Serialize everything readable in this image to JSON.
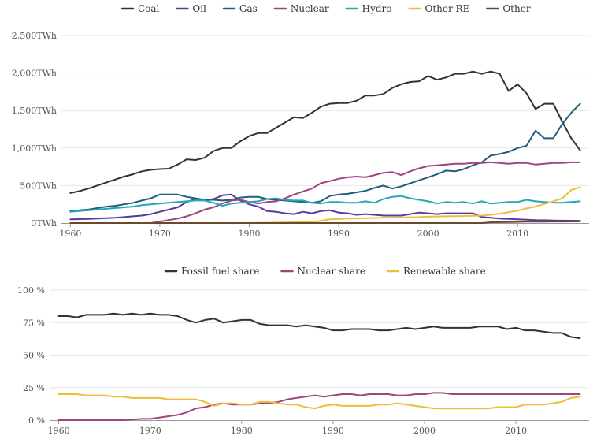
{
  "chart_data": [
    {
      "type": "line",
      "title": "",
      "xlabel": "",
      "ylabel": "",
      "x": [
        1960,
        1961,
        1962,
        1963,
        1964,
        1965,
        1966,
        1967,
        1968,
        1969,
        1970,
        1971,
        1972,
        1973,
        1974,
        1975,
        1976,
        1977,
        1978,
        1979,
        1980,
        1981,
        1982,
        1983,
        1984,
        1985,
        1986,
        1987,
        1988,
        1989,
        1990,
        1991,
        1992,
        1993,
        1994,
        1995,
        1996,
        1997,
        1998,
        1999,
        2000,
        2001,
        2002,
        2003,
        2004,
        2005,
        2006,
        2007,
        2008,
        2009,
        2010,
        2011,
        2012,
        2013,
        2014,
        2015,
        2016,
        2017
      ],
      "xlim": [
        1959,
        2018
      ],
      "xticks": [
        1960,
        1970,
        1980,
        1990,
        2000,
        2010
      ],
      "ylim": [
        0,
        2500
      ],
      "yticks": [
        0,
        500,
        1000,
        1500,
        2000,
        2500
      ],
      "ytick_labels": [
        "0TWh",
        "500TWh",
        "1,000TWh",
        "1,500TWh",
        "2,000TWh",
        "2,500TWh"
      ],
      "grid": true,
      "legend_position": "top",
      "series": [
        {
          "name": "Coal",
          "color": "#333333",
          "values": [
            400,
            425,
            460,
            500,
            540,
            580,
            620,
            650,
            690,
            710,
            720,
            725,
            780,
            850,
            840,
            870,
            960,
            1000,
            1000,
            1090,
            1160,
            1200,
            1200,
            1270,
            1340,
            1410,
            1400,
            1470,
            1550,
            1590,
            1600,
            1600,
            1630,
            1700,
            1700,
            1720,
            1800,
            1850,
            1880,
            1890,
            1960,
            1910,
            1940,
            1990,
            1990,
            2020,
            1990,
            2020,
            1990,
            1760,
            1850,
            1730,
            1520,
            1590,
            1590,
            1350,
            1130,
            970
          ]
        },
        {
          "name": "Oil",
          "color": "#5b3a9e",
          "values": [
            50,
            52,
            55,
            60,
            65,
            70,
            80,
            90,
            100,
            120,
            150,
            180,
            210,
            280,
            320,
            300,
            320,
            370,
            380,
            300,
            250,
            220,
            160,
            150,
            130,
            120,
            150,
            130,
            160,
            170,
            140,
            130,
            110,
            120,
            110,
            100,
            100,
            100,
            120,
            140,
            130,
            120,
            130,
            130,
            130,
            130,
            80,
            70,
            60,
            55,
            50,
            45,
            40,
            38,
            35,
            33,
            32,
            30
          ]
        },
        {
          "name": "Gas",
          "color": "#1f5f7a",
          "values": [
            160,
            170,
            180,
            200,
            220,
            230,
            250,
            270,
            300,
            330,
            380,
            380,
            380,
            350,
            330,
            310,
            310,
            300,
            310,
            340,
            350,
            350,
            320,
            310,
            300,
            290,
            280,
            270,
            290,
            360,
            380,
            390,
            410,
            430,
            470,
            500,
            460,
            490,
            530,
            570,
            610,
            650,
            700,
            690,
            720,
            770,
            810,
            900,
            920,
            950,
            1000,
            1030,
            1230,
            1130,
            1130,
            1320,
            1470,
            1590
          ]
        },
        {
          "name": "Nuclear",
          "color": "#a0437e",
          "values": [
            0,
            0,
            0,
            0,
            0,
            0,
            0,
            0,
            0,
            0,
            20,
            40,
            60,
            90,
            130,
            180,
            210,
            260,
            300,
            310,
            280,
            260,
            280,
            290,
            330,
            380,
            420,
            460,
            530,
            560,
            590,
            610,
            620,
            610,
            640,
            670,
            680,
            640,
            690,
            730,
            760,
            770,
            780,
            790,
            790,
            800,
            800,
            810,
            800,
            790,
            800,
            800,
            780,
            790,
            800,
            800,
            810,
            810
          ]
        },
        {
          "name": "Hydro",
          "color": "#22a8b8",
          "values": [
            150,
            160,
            170,
            180,
            190,
            200,
            210,
            220,
            240,
            250,
            260,
            270,
            280,
            290,
            300,
            300,
            270,
            230,
            260,
            270,
            280,
            290,
            320,
            330,
            310,
            300,
            300,
            270,
            260,
            280,
            280,
            270,
            270,
            290,
            270,
            320,
            350,
            360,
            330,
            310,
            290,
            260,
            280,
            270,
            280,
            260,
            290,
            260,
            270,
            280,
            280,
            310,
            290,
            280,
            270,
            270,
            280,
            290
          ]
        },
        {
          "name": "Other RE",
          "color": "#f0bd3a",
          "values": [
            0,
            0,
            0,
            0,
            0,
            0,
            0,
            0,
            0,
            0,
            0,
            0,
            0,
            0,
            0,
            0,
            0,
            0,
            0,
            0,
            0,
            2,
            4,
            6,
            8,
            10,
            12,
            15,
            30,
            50,
            55,
            60,
            62,
            65,
            68,
            70,
            72,
            75,
            78,
            80,
            85,
            88,
            90,
            92,
            95,
            98,
            100,
            110,
            125,
            145,
            165,
            195,
            220,
            255,
            290,
            330,
            440,
            480
          ]
        },
        {
          "name": "Other",
          "color": "#6b4a2b",
          "values": [
            0,
            0,
            0,
            0,
            0,
            0,
            0,
            0,
            0,
            0,
            0,
            0,
            0,
            0,
            0,
            0,
            0,
            0,
            0,
            0,
            0,
            0,
            0,
            0,
            0,
            0,
            0,
            0,
            0,
            0,
            0,
            0,
            0,
            0,
            0,
            0,
            0,
            0,
            0,
            0,
            0,
            0,
            0,
            0,
            0,
            0,
            0,
            10,
            12,
            14,
            16,
            18,
            18,
            19,
            20,
            20,
            21,
            22
          ]
        }
      ]
    },
    {
      "type": "line",
      "title": "",
      "xlabel": "",
      "ylabel": "",
      "x": [
        1960,
        1961,
        1962,
        1963,
        1964,
        1965,
        1966,
        1967,
        1968,
        1969,
        1970,
        1971,
        1972,
        1973,
        1974,
        1975,
        1976,
        1977,
        1978,
        1979,
        1980,
        1981,
        1982,
        1983,
        1984,
        1985,
        1986,
        1987,
        1988,
        1989,
        1990,
        1991,
        1992,
        1993,
        1994,
        1995,
        1996,
        1997,
        1998,
        1999,
        2000,
        2001,
        2002,
        2003,
        2004,
        2005,
        2006,
        2007,
        2008,
        2009,
        2010,
        2011,
        2012,
        2013,
        2014,
        2015,
        2016,
        2017
      ],
      "xlim": [
        1959,
        2018
      ],
      "xticks": [
        1960,
        1970,
        1980,
        1990,
        2000,
        2010
      ],
      "ylim": [
        0,
        100
      ],
      "yticks": [
        0,
        25,
        50,
        75,
        100
      ],
      "ytick_labels": [
        "0 %",
        "25 %",
        "50 %",
        "75 %",
        "100 %"
      ],
      "grid": true,
      "legend_position": "top",
      "series": [
        {
          "name": "Fossil fuel share",
          "color": "#333333",
          "values": [
            80,
            80,
            79,
            81,
            81,
            81,
            82,
            81,
            82,
            81,
            82,
            81,
            81,
            80,
            77,
            75,
            77,
            78,
            75,
            76,
            77,
            77,
            74,
            73,
            73,
            73,
            72,
            73,
            72,
            71,
            69,
            69,
            70,
            70,
            70,
            69,
            69,
            70,
            71,
            70,
            71,
            72,
            71,
            71,
            71,
            71,
            72,
            72,
            72,
            70,
            71,
            69,
            69,
            68,
            67,
            67,
            64,
            63
          ]
        },
        {
          "name": "Nuclear share",
          "color": "#a0437e",
          "values": [
            0,
            0,
            0,
            0,
            0,
            0,
            0,
            0,
            0.5,
            1,
            1,
            2,
            3,
            4,
            6,
            9,
            10,
            12,
            13,
            12,
            12,
            12,
            13,
            13,
            14,
            16,
            17,
            18,
            19,
            18,
            19,
            20,
            20,
            19,
            20,
            20,
            20,
            19,
            19,
            20,
            20,
            21,
            21,
            20,
            20,
            20,
            20,
            20,
            20,
            20,
            20,
            20,
            20,
            20,
            20,
            20,
            20,
            20
          ]
        },
        {
          "name": "Renewable share",
          "color": "#f0bd3a",
          "values": [
            20,
            20,
            20,
            19,
            19,
            19,
            18,
            18,
            17,
            17,
            17,
            17,
            16,
            16,
            16,
            16,
            14,
            11,
            13,
            13,
            12,
            12,
            14,
            14,
            13,
            12,
            12,
            10,
            9,
            11,
            12,
            11,
            11,
            11,
            11,
            12,
            12,
            13,
            12,
            11,
            10,
            9,
            9,
            9,
            9,
            9,
            9,
            9,
            10,
            10,
            10,
            12,
            12,
            12,
            13,
            14,
            17,
            18
          ]
        }
      ]
    }
  ]
}
